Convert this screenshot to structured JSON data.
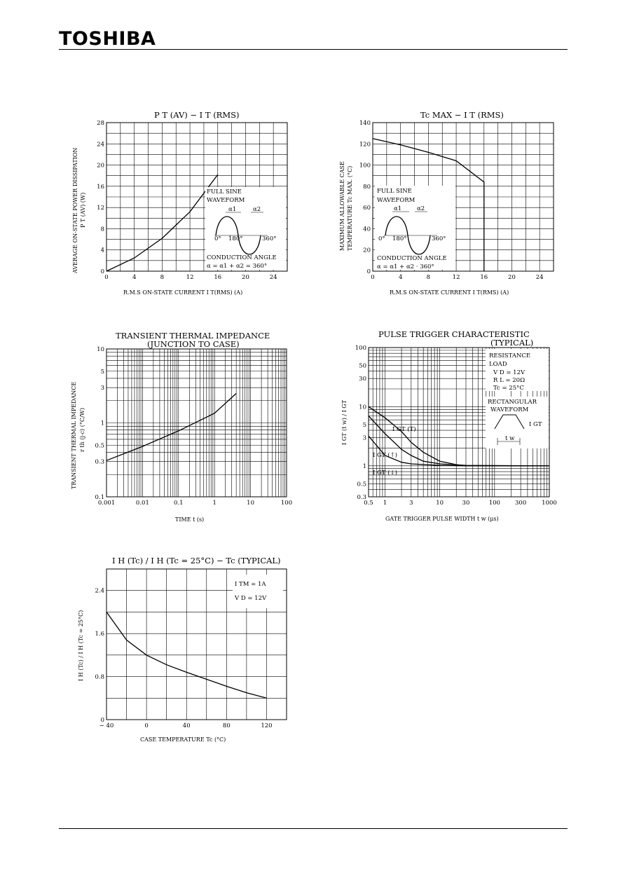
{
  "header": {
    "brand": "TOSHIBA"
  },
  "chart_data": [
    {
      "type": "line",
      "title": "P T (AV) − I T (RMS)",
      "xlabel": "R.M.S ON-STATE CURRENT  I T(RMS)  (A)",
      "ylabel": "AVERAGE ON-STATE POWER DISSIPATION",
      "ylabel2": "P T (AV)  (W)",
      "xlim": [
        0,
        26
      ],
      "ylim": [
        0,
        28
      ],
      "xticks": [
        0,
        4,
        8,
        12,
        16,
        20,
        24
      ],
      "yticks": [
        0,
        4,
        8,
        12,
        16,
        20,
        24,
        28
      ],
      "series": [
        {
          "values": [
            [
              0,
              0
            ],
            [
              4,
              2.5
            ],
            [
              8,
              6.2
            ],
            [
              12,
              11.2
            ],
            [
              16,
              18.2
            ]
          ]
        }
      ],
      "annotations": [
        "FULL SINE",
        "WAVEFORM",
        "α1",
        "α2",
        "0°",
        "180°",
        "360°",
        "CONDUCTION ANGLE",
        "α = α1 + α2 = 360°"
      ]
    },
    {
      "type": "line",
      "title": "Tc MAX − I T (RMS)",
      "xlabel": "R.M.S ON-STATE CURRENT  I T(RMS)  (A)",
      "ylabel": "MAXIMUM ALLOWABLE CASE",
      "ylabel2": "TEMPERATURE  Tc MAX.  (°C)",
      "xlim": [
        0,
        26
      ],
      "ylim": [
        0,
        140
      ],
      "xticks": [
        0,
        4,
        8,
        12,
        16,
        20,
        24
      ],
      "yticks": [
        0,
        20,
        40,
        60,
        80,
        100,
        120,
        140
      ],
      "series": [
        {
          "values": [
            [
              0,
              125
            ],
            [
              4,
              119
            ],
            [
              8,
              112
            ],
            [
              12,
              104
            ],
            [
              16,
              84
            ],
            [
              16,
              0
            ]
          ]
        }
      ],
      "annotations": [
        "FULL SINE",
        "WAVEFORM",
        "α1",
        "α2",
        "0°",
        "180°",
        "360°",
        "CONDUCTION ANGLE",
        "α = α1 + α2 · 360°"
      ]
    },
    {
      "type": "line",
      "title": "TRANSIENT THERMAL IMPEDANCE",
      "subtitle": "(JUNCTION TO CASE)",
      "xlabel": "TIME  t  (s)",
      "ylabel": "TRANSIENT THERMAL IMPEDANCE",
      "ylabel2": "r th (j-c)  (°C/W)",
      "xscale": "log",
      "yscale": "log",
      "xlim": [
        0.001,
        100
      ],
      "ylim": [
        0.1,
        10
      ],
      "xticks": [
        0.001,
        0.01,
        0.1,
        1,
        10,
        100
      ],
      "xtick_labels": [
        "0.001",
        "0.01",
        "0.1",
        "1",
        "10",
        "100"
      ],
      "yticks": [
        0.1,
        0.3,
        0.5,
        1,
        3,
        5,
        10
      ],
      "ytick_labels": [
        "0.1",
        "0.3",
        "0.5",
        "1",
        "3",
        "5",
        "10"
      ],
      "series": [
        {
          "values": [
            [
              0.001,
              0.31
            ],
            [
              0.01,
              0.48
            ],
            [
              0.1,
              0.78
            ],
            [
              1,
              1.35
            ],
            [
              4,
              2.5
            ]
          ]
        }
      ]
    },
    {
      "type": "line",
      "title": "PULSE TRIGGER CHARACTERISTIC",
      "subtitle": "(TYPICAL)",
      "xlabel": "GATE TRIGGER PULSE WIDTH  t w  (μs)",
      "ylabel": "I GT (t w) / I GT",
      "xscale": "log",
      "yscale": "log",
      "xlim": [
        0.5,
        1000
      ],
      "ylim": [
        0.3,
        100
      ],
      "xticks": [
        0.5,
        1,
        3,
        10,
        30,
        100,
        300,
        1000
      ],
      "xtick_labels": [
        "0.5",
        "1",
        "3",
        "10",
        "30",
        "100",
        "300",
        "1000"
      ],
      "yticks": [
        0.3,
        0.5,
        1,
        3,
        5,
        10,
        30,
        50,
        100
      ],
      "ytick_labels": [
        "0.3",
        "0.5",
        "1",
        "3",
        "5",
        "10",
        "30",
        "50",
        "100"
      ],
      "series": [
        {
          "name": "I GT (T)",
          "values": [
            [
              0.5,
              10
            ],
            [
              1,
              6.5
            ],
            [
              2,
              3.8
            ],
            [
              3,
              2.5
            ],
            [
              5,
              1.7
            ],
            [
              10,
              1.2
            ],
            [
              20,
              1.05
            ],
            [
              30,
              1.0
            ],
            [
              1000,
              1.0
            ]
          ]
        },
        {
          "name": "I GT (↑)",
          "values": [
            [
              0.5,
              7
            ],
            [
              1,
              3.5
            ],
            [
              2,
              1.9
            ],
            [
              3,
              1.5
            ],
            [
              5,
              1.2
            ],
            [
              10,
              1.08
            ],
            [
              30,
              1.02
            ],
            [
              1000,
              1.0
            ]
          ]
        },
        {
          "name": "I GT (↓)",
          "values": [
            [
              0.5,
              3.2
            ],
            [
              1,
              1.5
            ],
            [
              2,
              1.15
            ],
            [
              3,
              1.08
            ],
            [
              10,
              1.02
            ],
            [
              30,
              1.0
            ],
            [
              1000,
              1.0
            ]
          ]
        }
      ],
      "annotations": [
        "RESISTANCE",
        "LOAD",
        "V D = 12V",
        "R L = 20Ω",
        "Tc = 25°C",
        "RECTANGULAR",
        "WAVEFORM",
        "I GT",
        "t w"
      ]
    },
    {
      "type": "line",
      "title": "I H (Tc) / I H (Tc = 25°C) − Tc   (TYPICAL)",
      "xlabel": "CASE TEMPERATURE  Tc  (°C)",
      "ylabel": "I H (Tc) / I H (Tc = 25°C)",
      "xlim": [
        -40,
        140
      ],
      "ylim": [
        0,
        2.8
      ],
      "xticks": [
        -40,
        0,
        40,
        80,
        120
      ],
      "xtick_labels": [
        "− 40",
        "0",
        "40",
        "80",
        "120"
      ],
      "yticks": [
        0,
        0.8,
        1.6,
        2.4
      ],
      "ytick_labels": [
        "0",
        "0.8",
        "1.6",
        "2.4"
      ],
      "series": [
        {
          "values": [
            [
              -40,
              2.0
            ],
            [
              -20,
              1.48
            ],
            [
              0,
              1.2
            ],
            [
              20,
              1.02
            ],
            [
              40,
              0.88
            ],
            [
              60,
              0.75
            ],
            [
              80,
              0.62
            ],
            [
              100,
              0.5
            ],
            [
              120,
              0.4
            ]
          ]
        }
      ],
      "annotations": [
        "I TM = 1A",
        "V D = 12V"
      ]
    }
  ]
}
